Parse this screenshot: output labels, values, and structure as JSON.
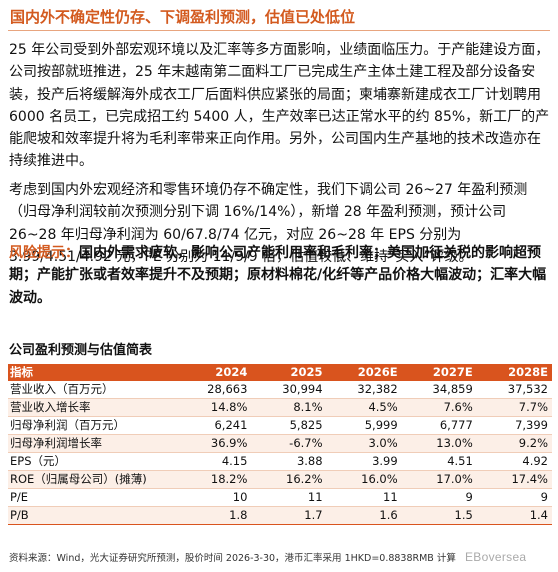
{
  "title": "国内外不确定性仍存、下调盈利预测，估值已处低位",
  "paragraphs": {
    "p1": "25 年公司受到外部宏观环境以及汇率等多方面影响，业绩面临压力。于产能建设方面，公司按部就班推进，25 年末越南第二面料工厂已完成生产主体土建工程及部分设备安装，投产后将缓解海外成衣工厂后面料供应紧张的局面；柬埔寨新建成衣工厂计划聘用 6000 名员工，已完成招工约 5400 人，生产效率已达正常水平的约 85%，新工厂的产能爬坡和效率提升将为毛利率带来正向作用。另外，公司国内生产基地的技术改造亦在持续推进中。",
    "p2": "考虑到国内外宏观经济和零售环境仍存不确定性，我们下调公司 26~27 年盈利预测（归母净利润较前次预测分别下调 16%/14%），新增 28 年盈利预测，预计公司 26~28 年归母净利润为 60/67.8/74 亿元，对应 26~28 年 EPS 分别为 3.99/4.51/4.92 元，PE 分别为 11/9/9 倍，估值较低、维持“买入”评级。",
    "risk_label": "风险提示：",
    "risk_text": "国内外需求疲软，影响公司产能利用率和毛利率；美国加征关税的影响超预期；产能扩张或者效率提升不及预期；原材料棉花/化纤等产品价格大幅波动；汇率大幅波动。"
  },
  "table": {
    "title": "公司盈利预测与估值简表",
    "headers": [
      "指标",
      "2024",
      "2025",
      "2026E",
      "2027E",
      "2028E"
    ],
    "rows": [
      [
        "营业收入（百万元）",
        "28,663",
        "30,994",
        "32,382",
        "34,859",
        "37,532"
      ],
      [
        "营业收入增长率",
        "14.8%",
        "8.1%",
        "4.5%",
        "7.6%",
        "7.7%"
      ],
      [
        "归母净利润（百万元）",
        "6,241",
        "5,825",
        "5,999",
        "6,777",
        "7,399"
      ],
      [
        "归母净利润增长率",
        "36.9%",
        "-6.7%",
        "3.0%",
        "13.0%",
        "9.2%"
      ],
      [
        "EPS（元）",
        "4.15",
        "3.88",
        "3.99",
        "4.51",
        "4.92"
      ],
      [
        "ROE（归属母公司）(摊薄)",
        "18.2%",
        "16.2%",
        "16.0%",
        "17.0%",
        "17.4%"
      ],
      [
        "P/E",
        "10",
        "11",
        "11",
        "9",
        "9"
      ],
      [
        "P/B",
        "1.8",
        "1.7",
        "1.6",
        "1.5",
        "1.4"
      ]
    ]
  },
  "source": "资料来源：Wind，光大证券研究所预测，股价时间 2026-3-30，港币汇率采用 1HKD=0.8838RMB 计算",
  "watermark": "EBoversea"
}
